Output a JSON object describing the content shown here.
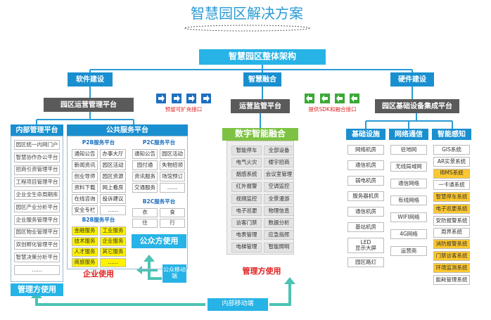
{
  "title": "智慧园区解决方案",
  "architecture": "智慧园区整体架构",
  "branches": [
    "软件建设",
    "智慧融合",
    "硬件建设"
  ],
  "software": {
    "platform": "园区运营管理平台",
    "interface_note": "预留可扩充接口",
    "internal": {
      "header": "内部管理平台",
      "items": [
        "园区统一内网门户",
        "智慧协作办公平台",
        "招商引资管理平台",
        "工程项目管理平台",
        "企业全生命周期库",
        "园区产业分析平台",
        "企业服务管理平台",
        "园区物业管理平台",
        "双创孵化管理平台",
        "智慧决策分析平台",
        "......"
      ],
      "footer": "管理方使用"
    },
    "public": {
      "header": "公共服务平台",
      "p2b": {
        "label": "P2B服务平台",
        "items": [
          "通知公告",
          "办事大厅",
          "新闻资讯",
          "园区活动",
          "创业导师",
          "园区资源",
          "资料下载",
          "网上看房",
          "在线咨询",
          "投诉建议",
          "安全专栏",
          "......"
        ]
      },
      "p2c": {
        "label": "P2C服务平台",
        "items": [
          "通知公告",
          "园区活动",
          "园付通",
          "失物招领",
          "资讯服务",
          "场馆预订",
          "交通服务",
          "......"
        ]
      },
      "b2c": {
        "label": "B2C服务平台",
        "items": [
          "衣",
          "食",
          "住",
          "行"
        ]
      },
      "b2b": {
        "label": "B2B服务平台",
        "color": "#fff200",
        "items": [
          "金融服务",
          "工业服务",
          "技术服务",
          "企业服务",
          "人才服务",
          "其它服务",
          "商旅服务",
          "......"
        ]
      },
      "enterprise_use": "企业使用",
      "public_use": "公众方使用",
      "public_mobile": "公众移动端"
    }
  },
  "fusion": {
    "platform": "运营监管平台",
    "interface_note": "提供SDK和融合接口",
    "header": "数字智能融合",
    "items": [
      "智能停车",
      "全部设备",
      "电气火灾",
      "楼宇招商",
      "烟感系统",
      "会议室管理",
      "红外报警",
      "空调监控",
      "视频监控",
      "全景漫游",
      "电子巡更",
      "物理信息",
      "访客门禁",
      "数据分析",
      "电表管理",
      "应急指挥",
      "电梯管理",
      "智能照明"
    ],
    "footer": "管理方使用"
  },
  "hardware": {
    "platform": "园区基础设备集成平台",
    "columns": [
      {
        "header": "基础设施",
        "items": [
          {
            "label": "网络机房"
          },
          {
            "label": "通信机房"
          },
          {
            "label": "弱电机房"
          },
          {
            "label": "服务器机房"
          },
          {
            "label": "通信机房"
          },
          {
            "label": "基站机房"
          },
          {
            "label": "LED\n显示大屏"
          },
          {
            "label": "园区路灯"
          }
        ]
      },
      {
        "header": "网络通信",
        "items": [
          {
            "label": "驻地网"
          },
          {
            "label": "无线局域网"
          },
          {
            "label": "通信网络"
          },
          {
            "label": "有线网络"
          },
          {
            "label": "WIFI网络"
          },
          {
            "label": "4G网络"
          },
          {
            "label": "运营商"
          }
        ]
      },
      {
        "header": "智能感知",
        "items": [
          {
            "label": "GIS系统"
          },
          {
            "label": "AR实景系统"
          },
          {
            "label": "IBMS系统",
            "color": "#fdc82f"
          },
          {
            "label": "一卡通系统"
          },
          {
            "label": "智慧停车系统",
            "color": "#fdc82f"
          },
          {
            "label": "电子巡更系统",
            "color": "#fdc82f"
          },
          {
            "label": "安防报警系统"
          },
          {
            "label": "周界系统"
          },
          {
            "label": "消防报警系统",
            "color": "#fdc82f"
          },
          {
            "label": "门禁访客系统",
            "color": "#fdc82f"
          },
          {
            "label": "环境监测系统",
            "color": "#fdc82f"
          },
          {
            "label": "能耗管理系统"
          }
        ]
      }
    ]
  },
  "internal_mobile": "内部移动端"
}
